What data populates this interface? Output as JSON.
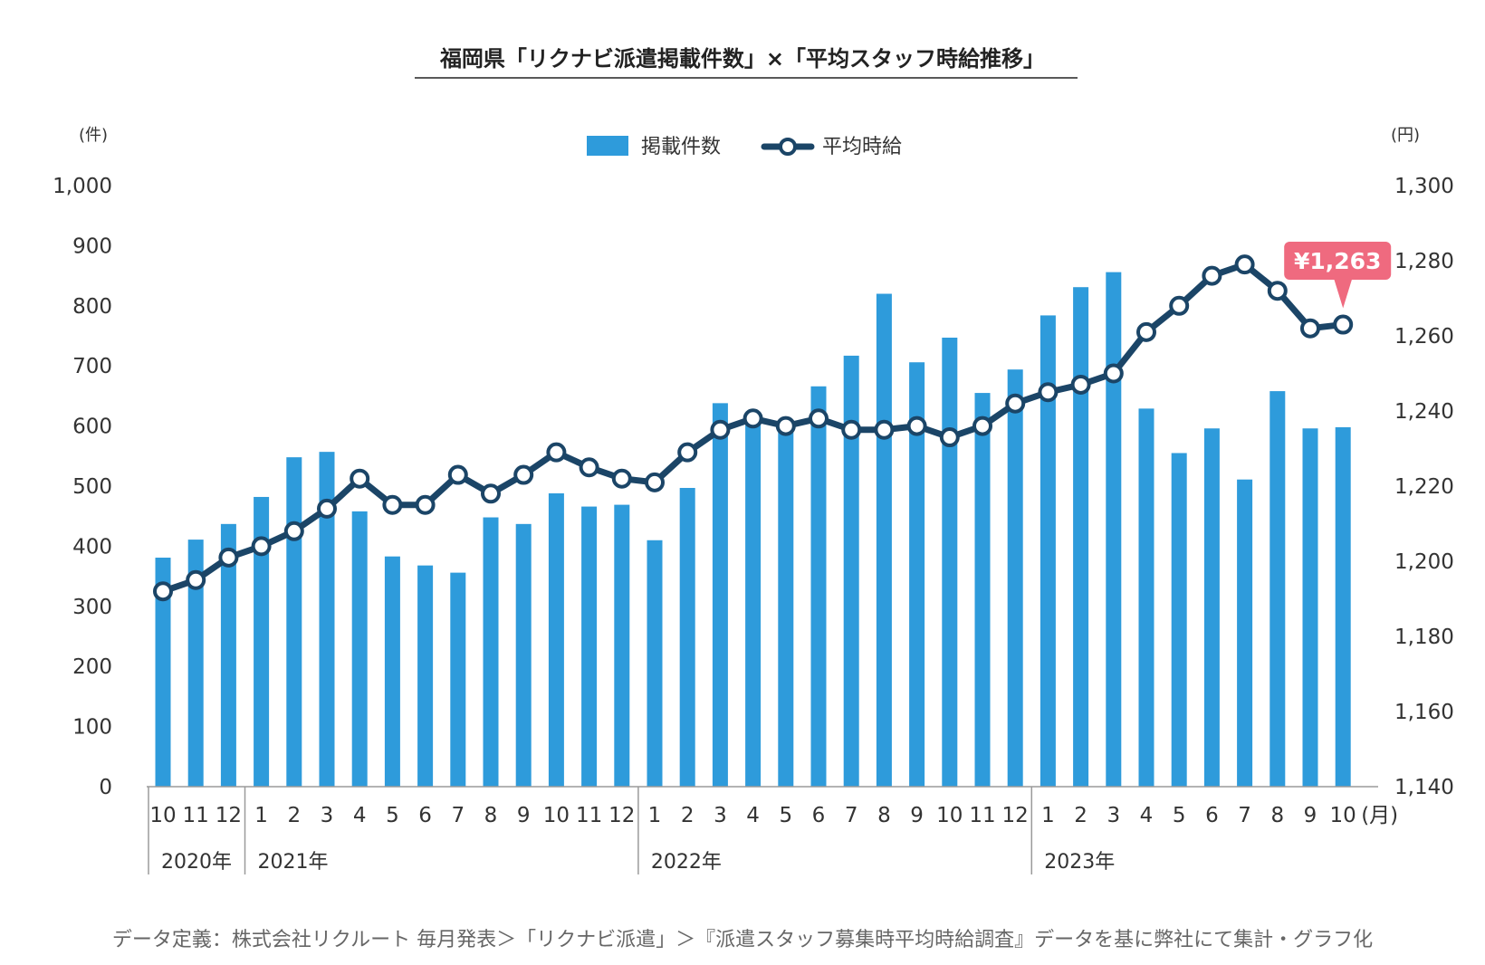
{
  "chart_data": {
    "type": "bar",
    "title": "福岡県「リクナビ派遣掲載件数」×「平均スタッフ時給推移」",
    "categories": [
      "10",
      "11",
      "12",
      "1",
      "2",
      "3",
      "4",
      "5",
      "6",
      "7",
      "8",
      "9",
      "10",
      "11",
      "12",
      "1",
      "2",
      "3",
      "4",
      "5",
      "6",
      "7",
      "8",
      "9",
      "10",
      "11",
      "12",
      "1",
      "2",
      "3",
      "4",
      "5",
      "6",
      "7",
      "8",
      "9",
      "10"
    ],
    "x_unit": "(月)",
    "years": [
      {
        "label": "2020年",
        "start": 0
      },
      {
        "label": "2021年",
        "start": 3
      },
      {
        "label": "2022年",
        "start": 15
      },
      {
        "label": "2023年",
        "start": 27
      }
    ],
    "series": [
      {
        "name": "掲載件数",
        "type": "bar",
        "axis": "left",
        "color": "#2e9bdb",
        "values": [
          381,
          411,
          437,
          482,
          548,
          557,
          458,
          383,
          368,
          356,
          448,
          437,
          488,
          466,
          469,
          410,
          497,
          638,
          620,
          605,
          666,
          717,
          820,
          706,
          747,
          655,
          694,
          784,
          831,
          856,
          629,
          555,
          596,
          511,
          658,
          596,
          598
        ]
      },
      {
        "name": "平均時給",
        "type": "line",
        "axis": "right",
        "color": "#1b4567",
        "values": [
          1192,
          1195,
          1201,
          1204,
          1208,
          1214,
          1222,
          1215,
          1215,
          1223,
          1218,
          1223,
          1229,
          1225,
          1222,
          1221,
          1229,
          1235,
          1238,
          1236,
          1238,
          1235,
          1235,
          1236,
          1233,
          1236,
          1242,
          1245,
          1247,
          1250,
          1261,
          1268,
          1276,
          1279,
          1272,
          1262,
          1263
        ]
      }
    ],
    "left_axis": {
      "unit": "(件)",
      "ylim": [
        0,
        1000
      ],
      "ticks": [
        0,
        100,
        200,
        300,
        400,
        500,
        600,
        700,
        800,
        900,
        1000
      ]
    },
    "right_axis": {
      "unit": "(円)",
      "ylim": [
        1140,
        1300
      ],
      "ticks": [
        1140,
        1160,
        1180,
        1200,
        1220,
        1240,
        1260,
        1280,
        1300
      ]
    },
    "callout": {
      "text": "¥1,263",
      "index": 36,
      "color": "#ef6a7f"
    },
    "legend_position": "top-center",
    "grid": false
  },
  "footnote": "データ定義：株式会社リクルート 毎月発表＞「リクナビ派遣」＞『派遣スタッフ募集時平均時給調査』データを基に弊社にて集計・グラフ化"
}
